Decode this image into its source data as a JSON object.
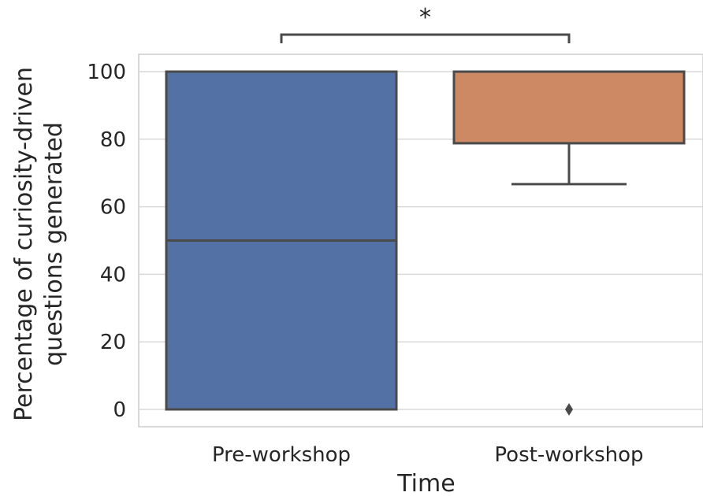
{
  "chart_data": {
    "type": "box",
    "title": "",
    "xlabel": "Time",
    "ylabel_line1": "Percentage of curiosity-driven",
    "ylabel_line2": "questions generated",
    "ylim": [
      -5,
      105
    ],
    "yticks": [
      0,
      20,
      40,
      60,
      80,
      100
    ],
    "ytick_labels": [
      "0",
      "20",
      "40",
      "60",
      "80",
      "100"
    ],
    "grid": true,
    "categories": [
      "Pre-workshop",
      "Post-workshop"
    ],
    "boxes": [
      {
        "category": "Pre-workshop",
        "color": "#5471a5",
        "whisker_low": 0,
        "q1": 0,
        "median": 50,
        "q3": 100,
        "whisker_high": 100,
        "outliers": []
      },
      {
        "category": "Post-workshop",
        "color": "#cc8963",
        "whisker_low": 66.7,
        "q1": 78.8,
        "median": 100,
        "q3": 100,
        "whisker_high": 100,
        "outliers": [
          0
        ]
      }
    ],
    "significance": {
      "between": [
        "Pre-workshop",
        "Post-workshop"
      ],
      "label": "*"
    }
  }
}
